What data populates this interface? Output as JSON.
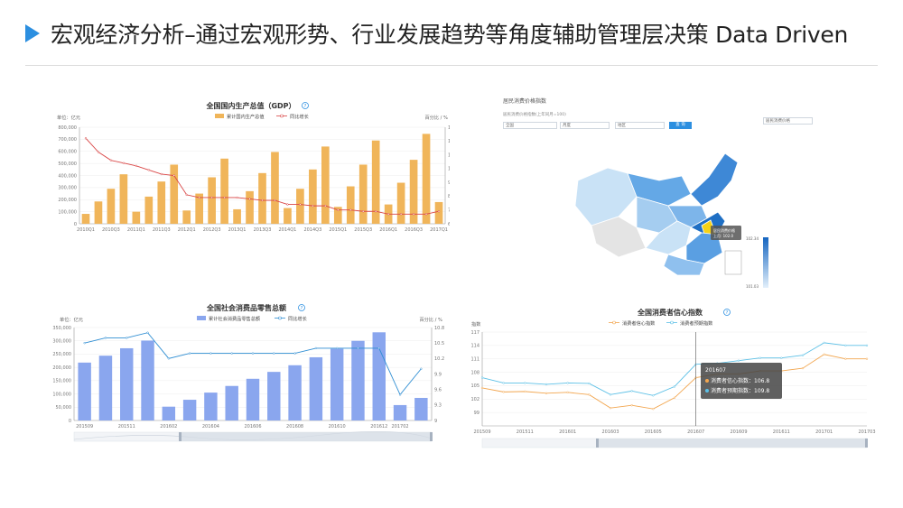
{
  "page": {
    "title": "宏观经济分析–通过宏观形势、行业发展趋势等角度辅助管理层决策 Data Driven"
  },
  "map_panel": {
    "title": "居民消费价格指数",
    "subtitle": "居民消费价格指数(上年同月=100)",
    "selects": [
      "全国",
      "月度",
      "地区"
    ],
    "query_label": "查 询",
    "right_select": "居民消费价格",
    "tooltip": {
      "region": "居民消费价格",
      "value": "上月: 102.0"
    },
    "scale_max": "102.34",
    "scale_min": "101.03",
    "colors": {
      "dark": "#1565c0",
      "mid": "#64a8e6",
      "light": "#c9e2f6",
      "highlight": "#f5d217",
      "none": "#e4e4e4"
    }
  },
  "tooltip_consumer": {
    "date": "201607",
    "line1": "消费者信心指数：106.8",
    "line2": "消费者预期指数：109.8"
  },
  "chart_data": [
    {
      "type": "bar",
      "title": "全国国内生产总值（GDP）",
      "ylabel_left": "单位：亿元",
      "ylabel_right": "百分比 / %",
      "legend": [
        "累计国内生产总值",
        "同比增长"
      ],
      "categories": [
        "2010Q1",
        "2010Q2",
        "2010Q3",
        "2010Q4",
        "2011Q1",
        "2011Q2",
        "2011Q3",
        "2011Q4",
        "2012Q1",
        "2012Q2",
        "2012Q3",
        "2012Q4",
        "2013Q1",
        "2013Q2",
        "2013Q3",
        "2013Q4",
        "2014Q1",
        "2014Q2",
        "2014Q3",
        "2014Q4",
        "2015Q1",
        "2015Q2",
        "2015Q3",
        "2015Q4",
        "2016Q1",
        "2016Q2",
        "2016Q3",
        "2016Q4",
        "2017Q1"
      ],
      "tick_labels": [
        "2010Q1",
        "2010Q3",
        "2011Q1",
        "2011Q3",
        "2012Q1",
        "2012Q3",
        "2013Q1",
        "2013Q3",
        "2014Q1",
        "2014Q3",
        "2015Q1",
        "2015Q3",
        "2016Q1",
        "2016Q3",
        "2017Q1"
      ],
      "series": [
        {
          "name": "累计国内生产总值",
          "values": [
            82000,
            185000,
            290000,
            410000,
            100000,
            225000,
            350000,
            490000,
            110000,
            250000,
            385000,
            540000,
            120000,
            270000,
            420000,
            595000,
            130000,
            290000,
            450000,
            640000,
            140000,
            310000,
            490000,
            690000,
            160000,
            340000,
            530000,
            745000,
            180000
          ]
        },
        {
          "name": "同比增长",
          "values": [
            12.2,
            11.2,
            10.6,
            10.4,
            10.2,
            9.9,
            9.6,
            9.5,
            8.1,
            7.9,
            7.9,
            7.9,
            7.9,
            7.8,
            7.7,
            7.7,
            7.4,
            7.4,
            7.3,
            7.3,
            7.0,
            7.0,
            6.9,
            6.9,
            6.7,
            6.7,
            6.7,
            6.7,
            6.9
          ]
        }
      ],
      "ylim_left": [
        0,
        800000
      ],
      "ylim_right": [
        6,
        13
      ],
      "yticks_left": [
        "0",
        "100,000",
        "200,000",
        "300,000",
        "400,000",
        "500,000",
        "600,000",
        "700,000",
        "800,000"
      ],
      "yticks_right": [
        "6",
        "7",
        "8",
        "9",
        "10",
        "11",
        "12",
        "13"
      ],
      "colors": [
        "#f0b55a",
        "#d94545"
      ]
    },
    {
      "type": "bar",
      "title": "全国社会消费品零售总额",
      "ylabel_left": "单位：亿元",
      "ylabel_right": "百分比 / %",
      "legend": [
        "累计社会消费品零售总额",
        "同比增长"
      ],
      "categories": [
        "201509",
        "201510",
        "201511",
        "201512",
        "201602",
        "201603",
        "201604",
        "201605",
        "201606",
        "201607",
        "201608",
        "201609",
        "201610",
        "201611",
        "201612",
        "201702",
        "201703"
      ],
      "tick_labels": [
        "201509",
        "201511",
        "201602",
        "201604",
        "201606",
        "201608",
        "201610",
        "201612",
        "201702"
      ],
      "series": [
        {
          "name": "累计社会消费品零售总额",
          "values": [
            218000,
            244000,
            272000,
            301000,
            52000,
            78000,
            105000,
            130000,
            157000,
            183000,
            208000,
            238000,
            270000,
            300000,
            332000,
            58000,
            85000
          ]
        },
        {
          "name": "同比增长",
          "values": [
            10.5,
            10.6,
            10.6,
            10.7,
            10.2,
            10.3,
            10.3,
            10.3,
            10.3,
            10.3,
            10.3,
            10.4,
            10.4,
            10.4,
            10.4,
            9.5,
            10.0
          ]
        }
      ],
      "ylim_left": [
        0,
        350000
      ],
      "ylim_right": [
        9,
        10.8
      ],
      "yticks_left": [
        "0",
        "50,000",
        "100,000",
        "150,000",
        "200,000",
        "250,000",
        "300,000",
        "350,000"
      ],
      "yticks_right": [
        "9",
        "9.3",
        "9.6",
        "9.9",
        "10.2",
        "10.5",
        "10.8"
      ],
      "colors": [
        "#8aa6ee",
        "#2f8ed3"
      ]
    },
    {
      "type": "line",
      "title": "全国消费者信心指数",
      "ylabel_left": "指数",
      "legend": [
        "消费者信心指数",
        "消费者预期指数"
      ],
      "categories": [
        "201509",
        "201510",
        "201511",
        "201512",
        "201601",
        "201602",
        "201603",
        "201604",
        "201605",
        "201606",
        "201607",
        "201608",
        "201609",
        "201610",
        "201611",
        "201612",
        "201701",
        "201702",
        "201703"
      ],
      "tick_labels": [
        "201509",
        "201511",
        "201601",
        "201603",
        "201605",
        "201607",
        "201609",
        "201611",
        "201701",
        "201703"
      ],
      "series": [
        {
          "name": "消费者信心指数",
          "values": [
            104.5,
            103.6,
            103.7,
            103.3,
            103.5,
            103.0,
            100.0,
            100.6,
            99.8,
            102.3,
            106.8,
            107.6,
            107.6,
            108.3,
            108.3,
            108.9,
            112.0,
            111.0,
            111.0
          ]
        },
        {
          "name": "消费者预期指数",
          "values": [
            106.8,
            105.6,
            105.6,
            105.3,
            105.6,
            105.5,
            103.0,
            103.8,
            102.8,
            104.8,
            109.8,
            110.0,
            110.6,
            111.2,
            111.2,
            111.8,
            114.6,
            114.0,
            114.0
          ]
        }
      ],
      "ylim": [
        96,
        117
      ],
      "yticks": [
        "99",
        "102",
        "105",
        "108",
        "111",
        "114",
        "117"
      ],
      "colors": [
        "#f2a64f",
        "#5cc0e6"
      ]
    }
  ]
}
